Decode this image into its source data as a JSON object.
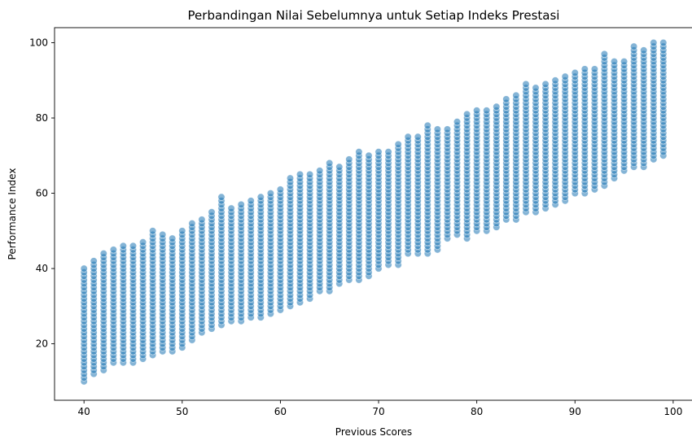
{
  "chart_data": {
    "type": "scatter",
    "title": "Perbandingan Nilai Sebelumnya untuk Setiap Indeks Prestasi",
    "xlabel": "Previous Scores",
    "ylabel": "Performance Index",
    "xlim": [
      37,
      102
    ],
    "ylim": [
      5,
      104
    ],
    "xticks": [
      40,
      50,
      60,
      70,
      80,
      90,
      100
    ],
    "yticks": [
      20,
      40,
      60,
      80,
      100
    ],
    "grid": false,
    "marker_color": "#1f77b4",
    "marker_alpha": 0.55,
    "series": [
      {
        "x": [
          40,
          41,
          42,
          43,
          44,
          45,
          46,
          47,
          48,
          49,
          50,
          51,
          52,
          53,
          54,
          55,
          56,
          57,
          58,
          59,
          60,
          61,
          62,
          63,
          64,
          65,
          66,
          67,
          68,
          69,
          70,
          71,
          72,
          73,
          74,
          75,
          76,
          77,
          78,
          79,
          80,
          81,
          82,
          83,
          84,
          85,
          86,
          87,
          88,
          89,
          90,
          91,
          92,
          93,
          94,
          95,
          96,
          97,
          98,
          99
        ],
        "y_min": [
          10,
          12,
          13,
          15,
          15,
          15,
          16,
          17,
          18,
          18,
          19,
          21,
          23,
          24,
          25,
          26,
          26,
          27,
          27,
          28,
          29,
          30,
          31,
          32,
          34,
          34,
          36,
          37,
          37,
          38,
          40,
          41,
          41,
          44,
          44,
          44,
          45,
          48,
          49,
          48,
          50,
          50,
          51,
          53,
          53,
          55,
          55,
          56,
          57,
          58,
          60,
          60,
          61,
          62,
          64,
          66,
          67,
          67,
          69,
          70
        ],
        "y_max": [
          40,
          42,
          44,
          45,
          46,
          46,
          47,
          50,
          49,
          48,
          50,
          52,
          53,
          55,
          59,
          56,
          57,
          58,
          59,
          60,
          61,
          64,
          65,
          65,
          66,
          68,
          67,
          69,
          71,
          70,
          71,
          71,
          73,
          75,
          75,
          78,
          77,
          77,
          79,
          81,
          82,
          82,
          83,
          85,
          86,
          89,
          88,
          89,
          90,
          91,
          92,
          93,
          93,
          97,
          95,
          95,
          99,
          98,
          100,
          100
        ]
      }
    ]
  }
}
